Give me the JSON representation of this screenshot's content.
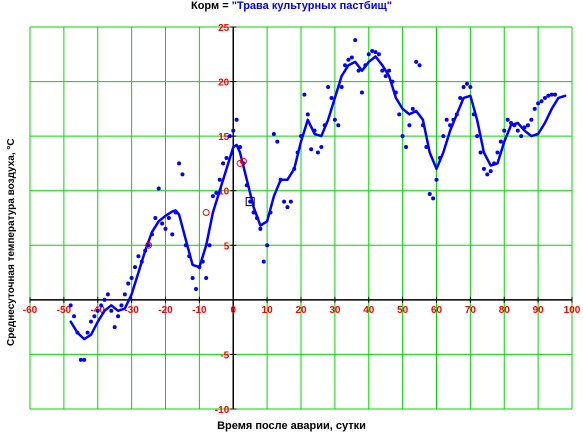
{
  "title": {
    "prefix": "Корм = ",
    "value": "\"Трава культурных пастбищ\""
  },
  "colors": {
    "grid": "#00d800",
    "axis": "#000000",
    "tick_label": "#ff0000",
    "series": "#0000ff",
    "highlight": "#ff0000",
    "marker_box": "#000000"
  },
  "chart_data": {
    "type": "scatter",
    "xlabel": "Время после аварии, сутки",
    "ylabel": "Среднесуточная температура воздуха, °С",
    "xlim": [
      -60,
      100
    ],
    "ylim": [
      -10,
      25
    ],
    "xticks": [
      -60,
      -50,
      -40,
      -30,
      -20,
      -10,
      0,
      10,
      20,
      30,
      40,
      50,
      60,
      70,
      80,
      90,
      100
    ],
    "yticks": [
      -10,
      -5,
      0,
      5,
      10,
      15,
      20,
      25
    ],
    "grid": true,
    "series": [
      {
        "kind": "points",
        "values": [
          [
            -48,
            -0.5
          ],
          [
            -47,
            -1.5
          ],
          [
            -46,
            -3
          ],
          [
            -45,
            -5.5
          ],
          [
            -44,
            -5.5
          ],
          [
            -43,
            -3
          ],
          [
            -42,
            -2
          ],
          [
            -41,
            -1.5
          ],
          [
            -40,
            -1
          ],
          [
            -39,
            -0.5
          ],
          [
            -38,
            0
          ],
          [
            -37,
            0.5
          ],
          [
            -36,
            -1
          ],
          [
            -35,
            -2.5
          ],
          [
            -34,
            -1.5
          ],
          [
            -33,
            -0.5
          ],
          [
            -32,
            0.5
          ],
          [
            -31,
            1.5
          ],
          [
            -30,
            2
          ],
          [
            -29,
            3
          ],
          [
            -28,
            4
          ],
          [
            -27,
            3.5
          ],
          [
            -26,
            4.5
          ],
          [
            -25,
            5
          ],
          [
            -24,
            6
          ],
          [
            -23,
            7.5
          ],
          [
            -22,
            10.2
          ],
          [
            -21,
            7
          ],
          [
            -20,
            6.5
          ],
          [
            -19,
            7.5
          ],
          [
            -18,
            6
          ],
          [
            -17,
            8
          ],
          [
            -16,
            12.5
          ],
          [
            -15,
            11.5
          ],
          [
            -14,
            5
          ],
          [
            -13,
            4
          ],
          [
            -12,
            2
          ],
          [
            -11,
            1
          ],
          [
            -10,
            3
          ],
          [
            -9,
            3.5
          ],
          [
            -8,
            2
          ],
          [
            -7,
            5
          ],
          [
            -6,
            9.5
          ],
          [
            -5,
            9.8
          ],
          [
            -4,
            11
          ],
          [
            -3,
            12.5
          ],
          [
            -2,
            13
          ],
          [
            -1,
            15
          ],
          [
            0,
            15.5
          ],
          [
            1,
            16.5
          ],
          [
            2,
            14
          ],
          [
            3,
            12.5
          ],
          [
            4,
            10.5
          ],
          [
            5,
            9
          ],
          [
            6,
            8
          ],
          [
            7,
            7.5
          ],
          [
            8,
            6.5
          ],
          [
            9,
            3.5
          ],
          [
            10,
            5
          ],
          [
            11,
            8
          ],
          [
            12,
            15.2
          ],
          [
            13,
            14.5
          ],
          [
            14,
            11
          ],
          [
            15,
            9
          ],
          [
            16,
            8.5
          ],
          [
            17,
            9
          ],
          [
            18,
            12
          ],
          [
            19,
            13.5
          ],
          [
            20,
            15
          ],
          [
            21,
            18.8
          ],
          [
            22,
            17
          ],
          [
            23,
            13.8
          ],
          [
            24,
            15.5
          ],
          [
            25,
            13.5
          ],
          [
            26,
            14
          ],
          [
            27,
            16
          ],
          [
            28,
            19.5
          ],
          [
            29,
            18.5
          ],
          [
            30,
            16.5
          ],
          [
            31,
            16
          ],
          [
            32,
            19.5
          ],
          [
            33,
            21.5
          ],
          [
            34,
            22
          ],
          [
            35,
            22.2
          ],
          [
            36,
            23.8
          ],
          [
            37,
            21
          ],
          [
            38,
            19
          ],
          [
            39,
            21.5
          ],
          [
            40,
            22.5
          ],
          [
            41,
            22.8
          ],
          [
            42,
            22.7
          ],
          [
            43,
            22.5
          ],
          [
            44,
            21
          ],
          [
            45,
            20.5
          ],
          [
            46,
            21
          ],
          [
            47,
            20
          ],
          [
            48,
            19
          ],
          [
            49,
            17
          ],
          [
            50,
            15
          ],
          [
            51,
            14
          ],
          [
            52,
            16
          ],
          [
            53,
            17.5
          ],
          [
            54,
            21.8
          ],
          [
            55,
            21.5
          ],
          [
            56,
            16
          ],
          [
            57,
            14
          ],
          [
            58,
            9.7
          ],
          [
            59,
            9.3
          ],
          [
            60,
            11
          ],
          [
            61,
            13
          ],
          [
            62,
            15
          ],
          [
            63,
            16.5
          ],
          [
            64,
            16
          ],
          [
            65,
            16.5
          ],
          [
            66,
            17
          ],
          [
            67,
            18.5
          ],
          [
            68,
            19.5
          ],
          [
            69,
            19.8
          ],
          [
            70,
            19.5
          ],
          [
            71,
            17
          ],
          [
            72,
            15
          ],
          [
            73,
            13.5
          ],
          [
            74,
            12
          ],
          [
            75,
            11.5
          ],
          [
            76,
            11.8
          ],
          [
            77,
            12.5
          ],
          [
            78,
            13.5
          ],
          [
            79,
            14.5
          ],
          [
            80,
            15.5
          ],
          [
            81,
            16.5
          ],
          [
            82,
            16.2
          ],
          [
            83,
            16
          ],
          [
            84,
            15.5
          ],
          [
            85,
            15
          ],
          [
            86,
            15.8
          ],
          [
            87,
            16
          ],
          [
            88,
            16.5
          ],
          [
            89,
            17.5
          ],
          [
            90,
            18
          ],
          [
            91,
            18.2
          ],
          [
            92,
            18.5
          ],
          [
            93,
            18.7
          ],
          [
            94,
            18.8
          ],
          [
            95,
            18.8
          ]
        ]
      },
      {
        "kind": "smoothed-line",
        "values": [
          [
            -48,
            -2
          ],
          [
            -46,
            -3
          ],
          [
            -44,
            -3.6
          ],
          [
            -42,
            -3.2
          ],
          [
            -40,
            -2
          ],
          [
            -38,
            -1
          ],
          [
            -36,
            -0.5
          ],
          [
            -34,
            -1
          ],
          [
            -32,
            -0.8
          ],
          [
            -30,
            0.5
          ],
          [
            -28,
            2.5
          ],
          [
            -26,
            4.5
          ],
          [
            -24,
            6.2
          ],
          [
            -22,
            7.2
          ],
          [
            -20,
            7.7
          ],
          [
            -18,
            8.1
          ],
          [
            -17,
            8.2
          ],
          [
            -16,
            7.8
          ],
          [
            -14,
            5.5
          ],
          [
            -12,
            3.2
          ],
          [
            -10,
            3
          ],
          [
            -8,
            5
          ],
          [
            -6,
            8
          ],
          [
            -4,
            10
          ],
          [
            -2,
            12
          ],
          [
            0,
            14
          ],
          [
            1,
            14.2
          ],
          [
            2,
            13.5
          ],
          [
            4,
            11
          ],
          [
            6,
            8.5
          ],
          [
            8,
            6.8
          ],
          [
            10,
            7.2
          ],
          [
            12,
            9.5
          ],
          [
            14,
            11
          ],
          [
            16,
            11
          ],
          [
            18,
            12
          ],
          [
            20,
            14.5
          ],
          [
            22,
            16.5
          ],
          [
            24,
            15.2
          ],
          [
            26,
            15
          ],
          [
            28,
            16.5
          ],
          [
            30,
            18.5
          ],
          [
            32,
            20.5
          ],
          [
            34,
            21.5
          ],
          [
            36,
            21.8
          ],
          [
            38,
            21
          ],
          [
            40,
            21.8
          ],
          [
            42,
            22.3
          ],
          [
            44,
            21.5
          ],
          [
            46,
            20.5
          ],
          [
            48,
            18.5
          ],
          [
            50,
            17.5
          ],
          [
            52,
            17
          ],
          [
            54,
            17.3
          ],
          [
            56,
            16.5
          ],
          [
            58,
            13.5
          ],
          [
            60,
            12
          ],
          [
            62,
            13.5
          ],
          [
            64,
            15.5
          ],
          [
            66,
            17
          ],
          [
            68,
            18.5
          ],
          [
            70,
            18.7
          ],
          [
            72,
            16.5
          ],
          [
            74,
            13.5
          ],
          [
            76,
            12.3
          ],
          [
            78,
            12.5
          ],
          [
            80,
            14.5
          ],
          [
            82,
            16
          ],
          [
            84,
            16.2
          ],
          [
            86,
            15.5
          ],
          [
            88,
            15
          ],
          [
            90,
            15.2
          ],
          [
            92,
            16.2
          ],
          [
            94,
            17.5
          ],
          [
            96,
            18.5
          ],
          [
            98,
            18.7
          ]
        ]
      },
      {
        "kind": "highlight-points",
        "values": [
          [
            -8,
            8
          ],
          [
            2,
            12.5
          ],
          [
            3,
            12.7
          ],
          [
            -25,
            5
          ]
        ]
      },
      {
        "kind": "box-marker",
        "values": [
          [
            5,
            9
          ]
        ]
      }
    ]
  }
}
